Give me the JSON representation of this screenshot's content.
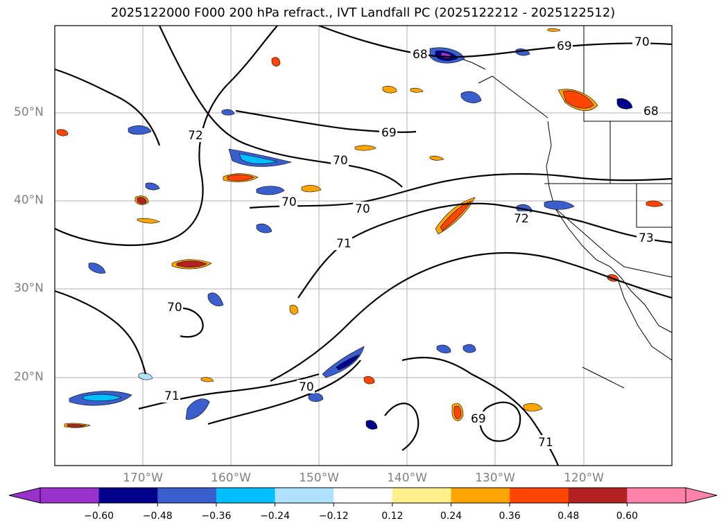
{
  "title": "2025122000 F000 200 hPa refract., IVT Landfall PC (2025122212 - 2025122512)",
  "latitude_labels": [
    "50°N",
    "40°N",
    "30°N",
    "20°N"
  ],
  "longitude_labels": [
    "170°W",
    "160°W",
    "150°W",
    "140°W",
    "130°W",
    "120°W"
  ],
  "colorbar": {
    "ticks": [
      "−0.60",
      "−0.48",
      "−0.36",
      "−0.24",
      "−0.12",
      "0.12",
      "0.24",
      "0.36",
      "0.48",
      "0.60"
    ],
    "colors": [
      "#9932cc",
      "#00008b",
      "#3a5fcd",
      "#00bfff",
      "#b0e2ff",
      "#ffffff",
      "#fff08c",
      "#ffa500",
      "#ff4500",
      "#b22222",
      "#ff82ab"
    ]
  },
  "contour_labels": [
    "68",
    "69",
    "70",
    "71",
    "72",
    "73"
  ],
  "colors": {
    "land_outline": "#000000",
    "grid": "#b0b0b0"
  }
}
